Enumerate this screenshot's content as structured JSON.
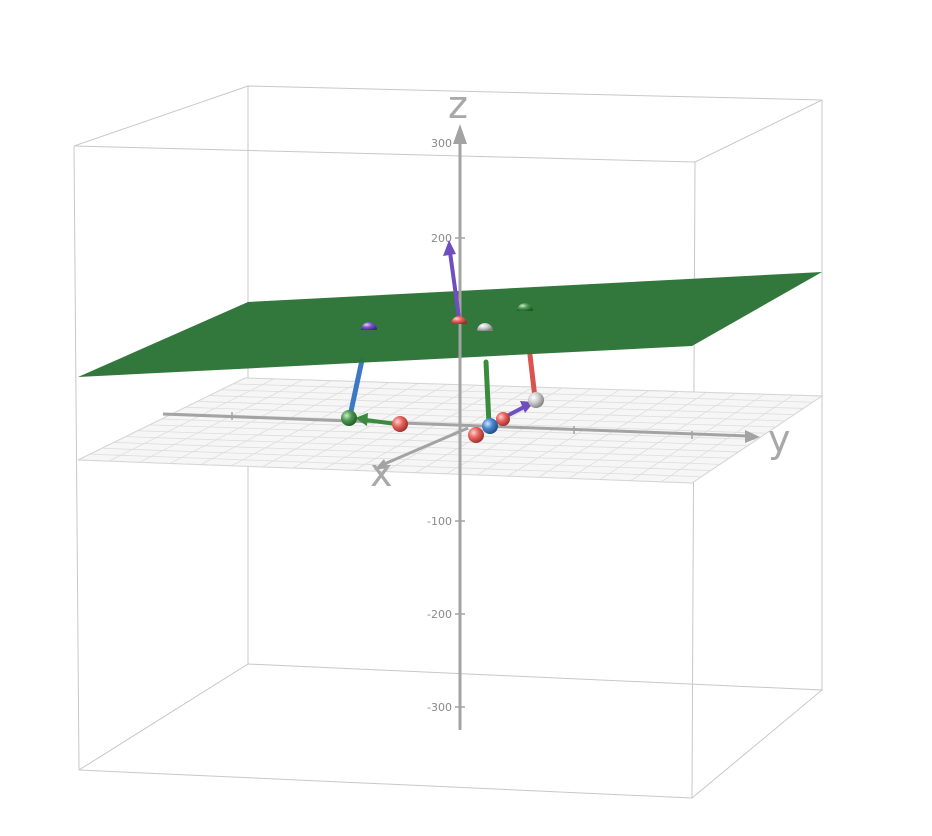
{
  "axes": {
    "x_label": "x",
    "y_label": "y",
    "z_label": "z",
    "z_ticks": [
      "300",
      "200",
      "-100",
      "-200",
      "-300"
    ],
    "z_range": [
      -300,
      300
    ],
    "grid": true,
    "axis_color": "#a3a3a3"
  },
  "plane": {
    "color": "#2e7438"
  },
  "colors": {
    "red": "#d9534f",
    "green": "#3a8a3f",
    "blue": "#3d79c2",
    "purple": "#6f4fc0",
    "gray": "#b9b9b9"
  },
  "objects": [
    {
      "name": "purple-vector-up",
      "type": "vector",
      "color": "purple"
    },
    {
      "name": "green-vector-left",
      "type": "vector",
      "color": "green"
    },
    {
      "name": "purple-vector-right",
      "type": "vector",
      "color": "purple"
    },
    {
      "name": "blue-drop-line",
      "type": "segment",
      "color": "blue"
    },
    {
      "name": "green-drop-line",
      "type": "segment",
      "color": "green"
    },
    {
      "name": "red-drop-line",
      "type": "segment",
      "color": "red"
    }
  ]
}
